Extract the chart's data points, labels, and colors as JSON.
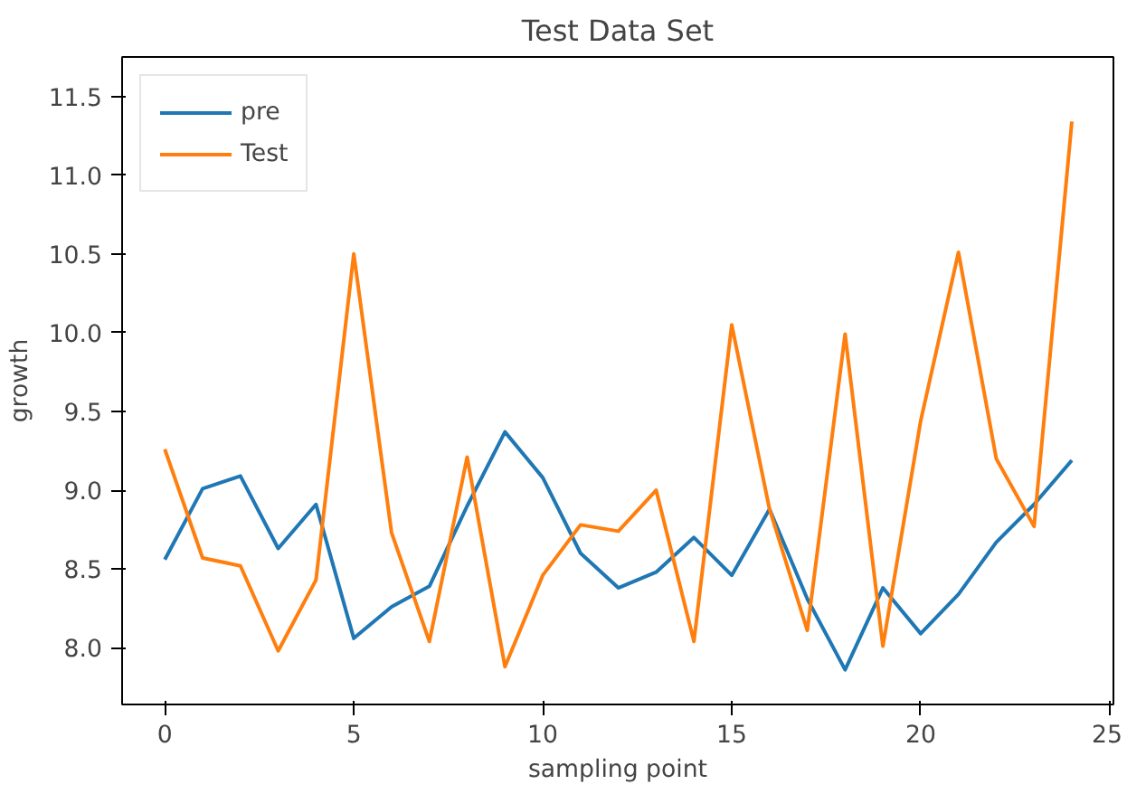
{
  "chart_data": {
    "type": "line",
    "title": "Test Data Set",
    "xlabel": "sampling point",
    "ylabel": "growth",
    "x": [
      0,
      1,
      2,
      3,
      4,
      5,
      6,
      7,
      8,
      9,
      10,
      11,
      12,
      13,
      14,
      15,
      16,
      17,
      18,
      19,
      20,
      21,
      22,
      23,
      24
    ],
    "series": [
      {
        "name": "pre",
        "color": "#1f77b4",
        "values": [
          8.56,
          9.01,
          9.09,
          8.63,
          8.91,
          8.06,
          8.26,
          8.39,
          8.9,
          9.37,
          9.08,
          8.6,
          8.38,
          8.48,
          8.7,
          8.46,
          8.88,
          8.31,
          7.86,
          8.38,
          8.09,
          8.34,
          8.67,
          8.91,
          9.19
        ]
      },
      {
        "name": "Test",
        "color": "#ff7f0e",
        "values": [
          9.26,
          8.57,
          8.52,
          7.98,
          8.43,
          10.5,
          8.73,
          8.04,
          9.21,
          7.88,
          8.46,
          8.78,
          8.74,
          9.0,
          8.04,
          10.05,
          8.88,
          8.11,
          9.99,
          8.01,
          9.44,
          10.51,
          9.2,
          8.77,
          11.34
        ]
      }
    ],
    "xlim": [
      -1.13,
      25.1
    ],
    "ylim": [
      7.64,
      11.75
    ],
    "xticks": [
      0,
      5,
      10,
      15,
      20,
      25
    ],
    "yticks": [
      {
        "value": 8,
        "label": "8.0"
      },
      {
        "value": 8.5,
        "label": "8.5"
      },
      {
        "value": 9,
        "label": "9.0"
      },
      {
        "value": 9.5,
        "label": "9.5"
      },
      {
        "value": 10,
        "label": "10.0"
      },
      {
        "value": 10.5,
        "label": "10.5"
      },
      {
        "value": 11,
        "label": "11.0"
      },
      {
        "value": 11.5,
        "label": "11.5"
      }
    ],
    "legend": "top left",
    "grid": false,
    "marker": "none",
    "line_style": "solid"
  }
}
